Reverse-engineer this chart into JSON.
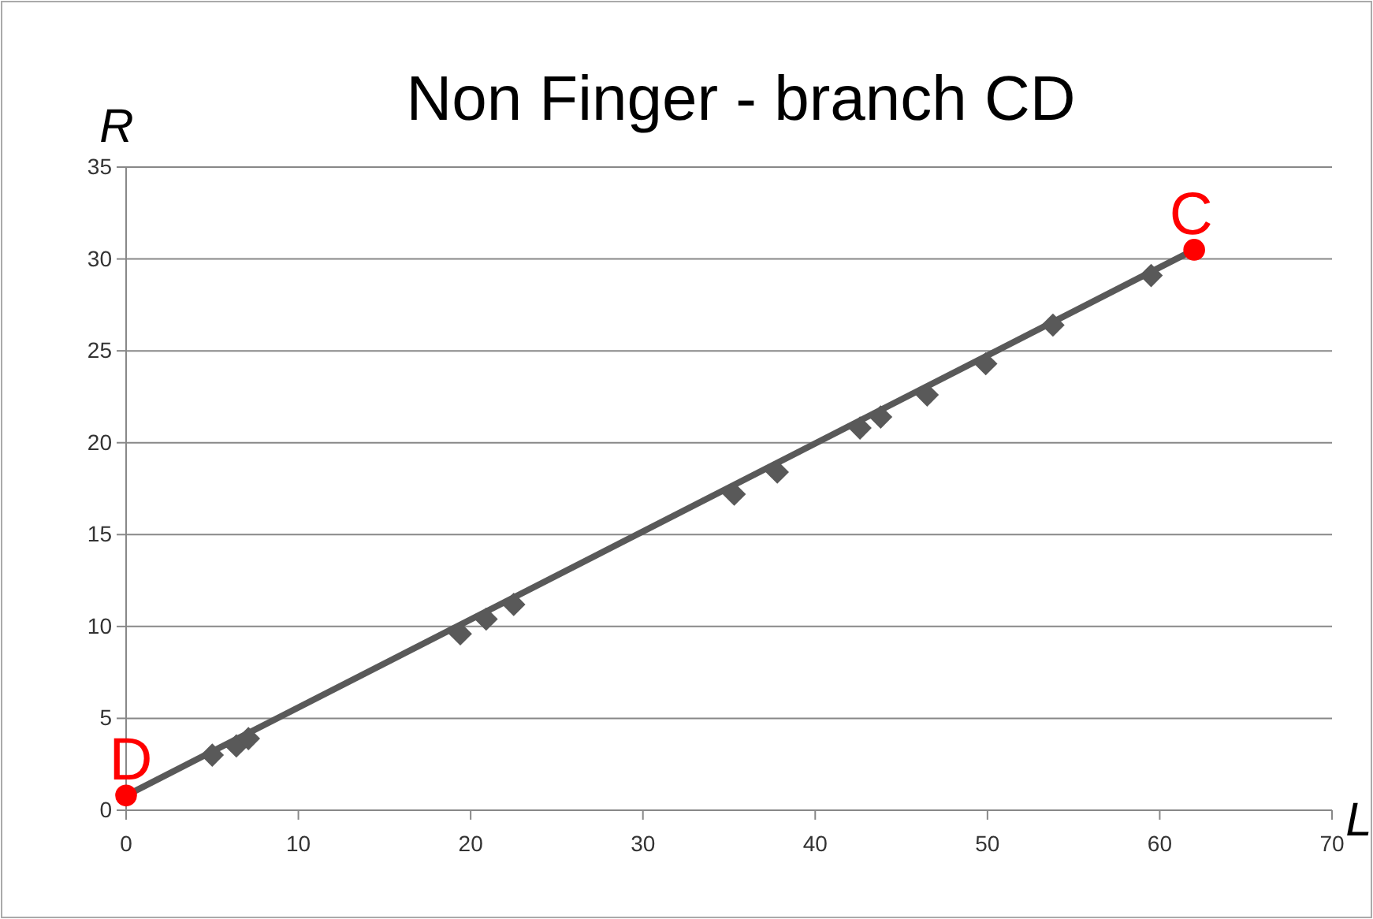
{
  "chart_data": {
    "type": "scatter",
    "title": "Non Finger - branch CD",
    "xlabel": "L",
    "ylabel": "R",
    "xlim": [
      0,
      70
    ],
    "xticks": [
      0,
      10,
      20,
      30,
      40,
      50,
      60,
      70
    ],
    "ylim": [
      0,
      35
    ],
    "yticks": [
      0,
      5,
      10,
      15,
      20,
      25,
      30,
      35
    ],
    "grid": "y",
    "series": [
      {
        "type": "line",
        "color": "#595959",
        "x": [
          0,
          62
        ],
        "values": [
          0.8,
          30.5
        ],
        "marker": "none"
      },
      {
        "color": "#595959",
        "marker": "diamond",
        "x": [
          5.0,
          6.4,
          7.1,
          19.4,
          20.9,
          22.5,
          35.3,
          37.8,
          42.6,
          43.8,
          46.5,
          49.9,
          53.8,
          59.5
        ],
        "values": [
          3.0,
          3.5,
          3.9,
          9.6,
          10.4,
          11.2,
          17.2,
          18.4,
          20.8,
          21.4,
          22.6,
          24.3,
          26.4,
          29.1
        ]
      },
      {
        "color": "#ff0000",
        "marker": "circle",
        "x": [
          0,
          62
        ],
        "values": [
          0.8,
          30.5
        ]
      }
    ],
    "annotations": [
      {
        "text": "D",
        "x": 0,
        "y": 0.8
      },
      {
        "text": "C",
        "x": 62,
        "y": 30.5
      }
    ]
  }
}
